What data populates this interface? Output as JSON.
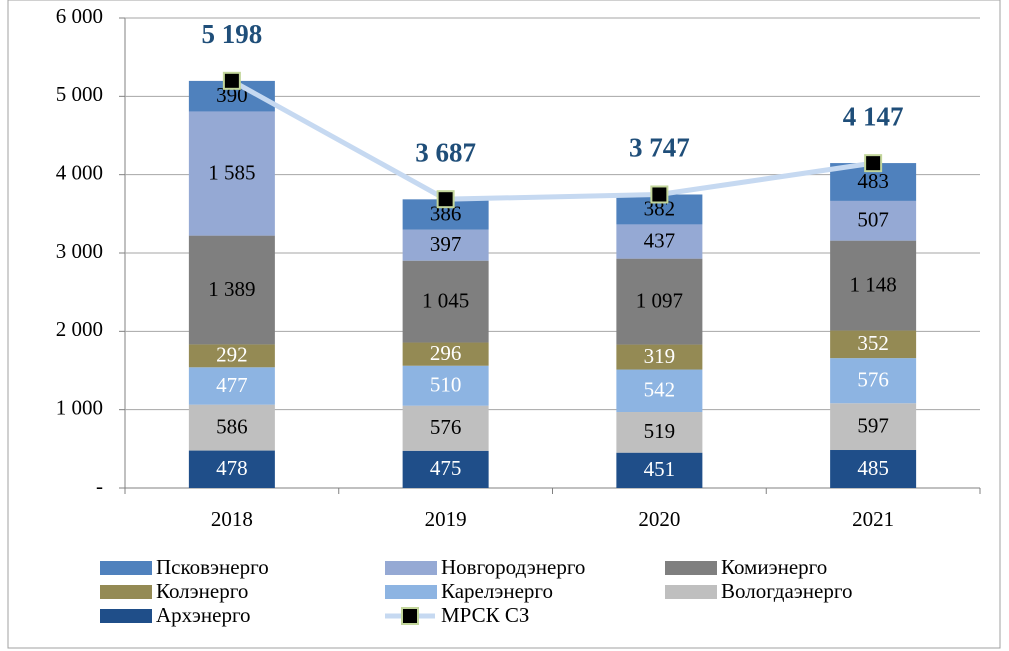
{
  "chart_data": {
    "type": "bar",
    "stacked": true,
    "categories": [
      "2018",
      "2019",
      "2020",
      "2021"
    ],
    "ylim": [
      0,
      6000
    ],
    "yticks": [
      {
        "value": 0,
        "label": "-"
      },
      {
        "value": 1000,
        "label": "1 000"
      },
      {
        "value": 2000,
        "label": "2 000"
      },
      {
        "value": 3000,
        "label": "3 000"
      },
      {
        "value": 4000,
        "label": "4 000"
      },
      {
        "value": 5000,
        "label": "5 000"
      },
      {
        "value": 6000,
        "label": "6 000"
      }
    ],
    "series": [
      {
        "name": "Архэнерго",
        "color": "#1f4e89",
        "label_color": "#ffffff",
        "values": [
          478,
          475,
          451,
          485
        ]
      },
      {
        "name": "Вологдаэнерго",
        "color": "#bfbfbf",
        "label_color": "#000000",
        "values": [
          586,
          576,
          519,
          597
        ]
      },
      {
        "name": "Карелэнерго",
        "color": "#8db4e2",
        "label_color": "#ffffff",
        "values": [
          477,
          510,
          542,
          576
        ]
      },
      {
        "name": "Колэнерго",
        "color": "#948a54",
        "label_color": "#ffffff",
        "values": [
          292,
          296,
          319,
          352
        ]
      },
      {
        "name": "Комиэнерго",
        "color": "#7f7f7f",
        "label_color": "#000000",
        "values": [
          1389,
          1045,
          1097,
          1148
        ],
        "value_labels": [
          "1 389",
          "1 045",
          "1 097",
          "1 148"
        ]
      },
      {
        "name": "Новгородэнерго",
        "color": "#95a9d4",
        "label_color": "#000000",
        "values": [
          1585,
          397,
          437,
          507
        ],
        "value_labels": [
          "1 585",
          "397",
          "437",
          "507"
        ]
      },
      {
        "name": "Псковэнерго",
        "color": "#4f81bd",
        "label_color": "#000000",
        "values": [
          390,
          386,
          382,
          483
        ]
      },
      {
        "name": "МРСК СЗ",
        "type": "line",
        "color": "#c6d9f1",
        "marker_color": "#000000",
        "values": [
          5198,
          3687,
          3747,
          4147
        ],
        "value_labels": [
          "5 198",
          "3 687",
          "3 747",
          "4 147"
        ]
      }
    ]
  }
}
